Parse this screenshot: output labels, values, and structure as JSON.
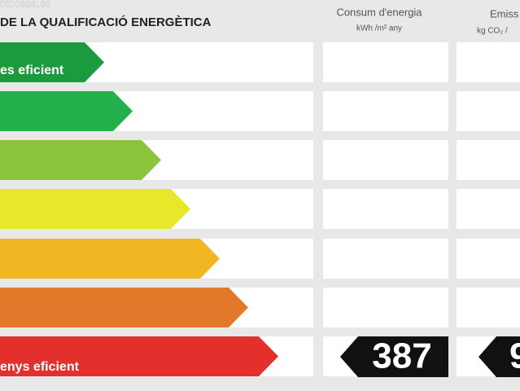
{
  "watermark": "fotocasa.es",
  "header": {
    "title": "DE LA QUALIFICACIÓ ENERGÈTICA"
  },
  "columns": [
    {
      "title": "Consum d'energia",
      "unit": "kWh /m² any"
    },
    {
      "title": "Emiss",
      "unit": "kg CO₂ /"
    }
  ],
  "scale": {
    "top_label": "es eficient",
    "bottom_label": "enys eficient"
  },
  "ratings": {
    "consumption": 387,
    "emissions": 9
  }
}
